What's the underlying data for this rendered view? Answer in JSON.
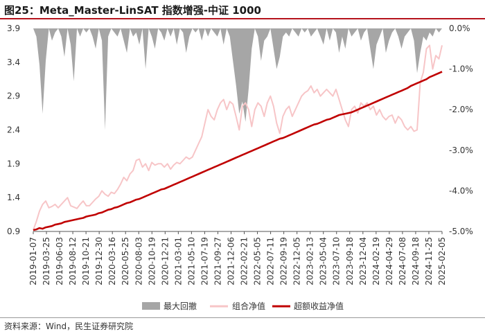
{
  "title": "图25：Meta_Master-LinSAT 指数增强-中证 1000",
  "source": "资料来源：Wind，民生证券研究院",
  "chart_data": {
    "type": "line",
    "title": "图25：Meta_Master-LinSAT 指数增强-中证 1000",
    "left_axis": {
      "ticks": [
        0.9,
        1.4,
        1.9,
        2.4,
        2.9,
        3.4,
        3.9
      ],
      "labels": [
        "0.9",
        "1.4",
        "1.9",
        "2.4",
        "2.9",
        "3.4",
        "3.9"
      ],
      "range": [
        0.9,
        3.9
      ]
    },
    "right_axis": {
      "ticks": [
        0,
        -1,
        -2,
        -3,
        -4,
        -5
      ],
      "labels": [
        "0.0%",
        "-1.0%",
        "-2.0%",
        "-3.0%",
        "-4.0%",
        "-5.0%"
      ],
      "range": [
        -5,
        0
      ]
    },
    "x_labels": [
      "2019-01-07",
      "2019-03-25",
      "2019-06-03",
      "2019-08-12",
      "2019-10-21",
      "2019-12-30",
      "2020-03-16",
      "2020-05-25",
      "2020-08-03",
      "2020-10-19",
      "2020-12-21",
      "2021-03-01",
      "2021-05-10",
      "2021-07-19",
      "2021-09-27",
      "2021-12-06",
      "2022-02-21",
      "2022-05-05",
      "2022-07-11",
      "2022-09-19",
      "2022-12-05",
      "2023-02-13",
      "2023-05-04",
      "2023-07-10",
      "2023-09-18",
      "2023-12-04",
      "2024-02-19",
      "2024-04-29",
      "2024-07-08",
      "2024-09-18",
      "2024-11-25",
      "2025-02-05"
    ],
    "legend": [
      "最大回撤",
      "组合净值",
      "超额收益净值"
    ],
    "colors": {
      "drawdown": "#a6a6a6",
      "portfolio": "#f7c5c7",
      "excess": "#c00000"
    },
    "series": [
      {
        "name": "组合净值",
        "axis": "left",
        "values": [
          0.92,
          1.05,
          1.2,
          1.3,
          1.35,
          1.25,
          1.27,
          1.3,
          1.25,
          1.3,
          1.35,
          1.4,
          1.28,
          1.26,
          1.24,
          1.3,
          1.35,
          1.28,
          1.28,
          1.33,
          1.38,
          1.42,
          1.5,
          1.45,
          1.42,
          1.48,
          1.46,
          1.52,
          1.6,
          1.7,
          1.65,
          1.75,
          1.8,
          1.95,
          1.97,
          1.85,
          1.9,
          1.8,
          1.92,
          1.88,
          1.9,
          1.9,
          1.85,
          1.9,
          1.82,
          1.88,
          1.92,
          1.9,
          1.95,
          2.0,
          1.97,
          2.0,
          2.1,
          2.2,
          2.3,
          2.5,
          2.7,
          2.6,
          2.55,
          2.7,
          2.8,
          2.85,
          2.7,
          2.82,
          2.78,
          2.6,
          2.4,
          2.75,
          2.8,
          2.7,
          2.45,
          2.7,
          2.8,
          2.75,
          2.6,
          2.8,
          2.9,
          2.75,
          2.5,
          2.35,
          2.6,
          2.7,
          2.75,
          2.6,
          2.7,
          2.8,
          2.9,
          2.95,
          2.98,
          3.05,
          2.95,
          3.0,
          2.9,
          2.95,
          3.0,
          2.95,
          2.9,
          3.0,
          2.85,
          2.7,
          2.55,
          2.45,
          2.7,
          2.75,
          2.65,
          2.8,
          2.75,
          2.8,
          2.7,
          2.75,
          2.62,
          2.7,
          2.6,
          2.55,
          2.6,
          2.62,
          2.5,
          2.6,
          2.55,
          2.45,
          2.4,
          2.45,
          2.38,
          2.4,
          3.1,
          3.25,
          3.6,
          3.65,
          3.3,
          3.5,
          3.45,
          3.65
        ]
      },
      {
        "name": "超额收益净值",
        "axis": "left",
        "values": [
          0.92,
          0.93,
          0.95,
          0.94,
          0.96,
          0.97,
          0.98,
          1.0,
          1.01,
          1.02,
          1.04,
          1.05,
          1.06,
          1.07,
          1.08,
          1.09,
          1.1,
          1.12,
          1.13,
          1.14,
          1.15,
          1.17,
          1.18,
          1.2,
          1.22,
          1.23,
          1.25,
          1.26,
          1.28,
          1.3,
          1.32,
          1.33,
          1.35,
          1.37,
          1.38,
          1.4,
          1.42,
          1.44,
          1.46,
          1.48,
          1.5,
          1.52,
          1.53,
          1.55,
          1.57,
          1.59,
          1.61,
          1.63,
          1.65,
          1.67,
          1.69,
          1.71,
          1.73,
          1.75,
          1.77,
          1.79,
          1.81,
          1.83,
          1.85,
          1.87,
          1.89,
          1.91,
          1.93,
          1.95,
          1.97,
          1.99,
          2.01,
          2.03,
          2.05,
          2.07,
          2.09,
          2.11,
          2.13,
          2.15,
          2.17,
          2.19,
          2.21,
          2.23,
          2.25,
          2.27,
          2.28,
          2.3,
          2.32,
          2.34,
          2.36,
          2.38,
          2.4,
          2.42,
          2.44,
          2.46,
          2.48,
          2.49,
          2.51,
          2.53,
          2.55,
          2.56,
          2.58,
          2.6,
          2.62,
          2.63,
          2.64,
          2.65,
          2.66,
          2.68,
          2.7,
          2.72,
          2.74,
          2.76,
          2.78,
          2.8,
          2.82,
          2.84,
          2.86,
          2.88,
          2.9,
          2.92,
          2.94,
          2.96,
          2.98,
          3.0,
          3.02,
          3.05,
          3.07,
          3.09,
          3.11,
          3.13,
          3.15,
          3.18,
          3.2,
          3.22,
          3.24,
          3.26
        ]
      },
      {
        "name": "最大回撤",
        "axis": "right",
        "values": [
          0,
          -0.2,
          -0.9,
          -2.1,
          -0.8,
          0,
          -0.3,
          -0.1,
          0,
          -0.2,
          -0.7,
          0,
          -0.4,
          -1.3,
          0,
          -0.2,
          0,
          -0.1,
          0,
          -0.2,
          -0.5,
          0,
          -0.3,
          -2.5,
          -0.2,
          0,
          -0.1,
          -0.2,
          0,
          -0.3,
          -0.6,
          0,
          -0.2,
          -0.1,
          -0.4,
          0,
          -1.0,
          0,
          -0.2,
          -0.5,
          0,
          -0.1,
          -0.3,
          0,
          -0.2,
          0,
          -0.4,
          0,
          -0.1,
          -0.6,
          -0.2,
          0,
          -0.1,
          0,
          -0.3,
          0,
          -0.2,
          0,
          -0.1,
          -0.2,
          0,
          -0.4,
          0,
          -0.2,
          -0.8,
          -1.4,
          -2.1,
          -1.8,
          -2.3,
          -1.5,
          -0.5,
          0,
          -0.2,
          -0.8,
          -0.3,
          -0.2,
          0,
          -0.5,
          -1.0,
          -0.7,
          -0.2,
          -0.1,
          -0.2,
          0,
          -0.1,
          -0.2,
          0,
          -0.1,
          0,
          -0.2,
          -0.1,
          0,
          -0.2,
          -0.4,
          0,
          -0.3,
          0,
          -0.1,
          -0.6,
          -0.2,
          -0.5,
          0,
          -0.2,
          -0.1,
          0,
          -0.3,
          -0.1,
          0,
          -0.5,
          -1.0,
          -0.4,
          -0.2,
          0,
          -0.6,
          -0.3,
          -0.1,
          0,
          -0.2,
          -0.5,
          -0.2,
          -0.1,
          0,
          -0.3,
          -1.1,
          -0.6,
          -0.2,
          -0.3,
          -0.1,
          -0.2,
          0,
          -0.1,
          0
        ]
      }
    ]
  }
}
